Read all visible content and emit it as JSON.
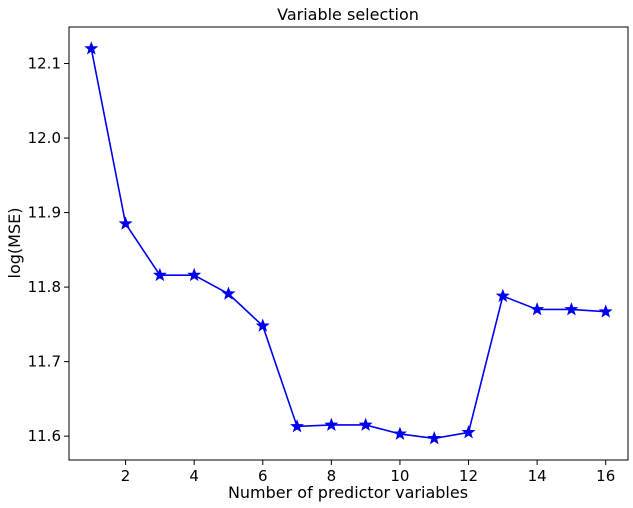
{
  "chart_data": {
    "type": "line",
    "title": "Variable selection",
    "xlabel": "Number of predictor variables",
    "ylabel": "log(MSE)",
    "xlim": [
      0.35,
      16.65
    ],
    "ylim": [
      11.568,
      12.149
    ],
    "xticks": [
      2,
      4,
      6,
      8,
      10,
      12,
      14,
      16
    ],
    "yticks": [
      11.6,
      11.7,
      11.8,
      11.9,
      12.0,
      12.1
    ],
    "ytick_labels": [
      "11.6",
      "11.7",
      "11.8",
      "11.9",
      "12.0",
      "12.1"
    ],
    "grid": false,
    "series": [
      {
        "color": "#0000ee",
        "marker": "star",
        "x": [
          1,
          2,
          3,
          4,
          5,
          6,
          7,
          8,
          9,
          10,
          11,
          12,
          13,
          14,
          15,
          16
        ],
        "y": [
          12.12,
          11.885,
          11.816,
          11.816,
          11.791,
          11.748,
          11.613,
          11.615,
          11.615,
          11.603,
          11.597,
          11.605,
          11.788,
          11.77,
          11.77,
          11.767
        ]
      }
    ]
  }
}
